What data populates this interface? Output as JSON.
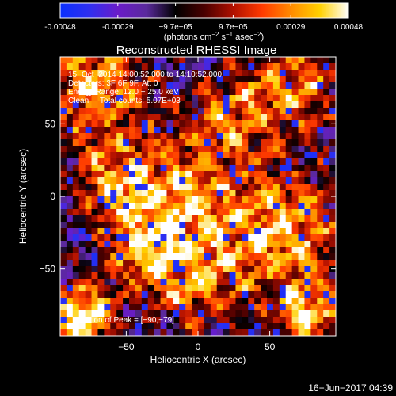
{
  "chart_data": {
    "type": "heatmap",
    "title": "Reconstructed RHESSI Image",
    "colorbar": {
      "ticks": [
        "-0.00048",
        "-0.00029",
        "−9.7e−05",
        "9.7e−05",
        "0.00029",
        "0.00048"
      ],
      "unit_parts": [
        "(photons cm",
        "−2",
        " s",
        "−1",
        " asec",
        "−2",
        ")"
      ],
      "range": [
        -0.00048,
        0.00048
      ],
      "colors": [
        "#0a2fff",
        "#2f2ff0",
        "#6a1cc9",
        "#5a2a9c",
        "#000000",
        "#4a0000",
        "#b01000",
        "#ff3a00",
        "#ff8a00",
        "#ffd000",
        "#ffffff"
      ]
    },
    "annotations": [
      "15−Oct−2014 14:00:52.000 to 14:10:52.000",
      "Detectors: 3F 6F 9F, Att 0",
      "Energy Range: 12.0 − 25.0 keV",
      "Clean     Total counts: 5.07E+03"
    ],
    "peak_label": "Position of Peak = [−90,−79]",
    "peak": [
      -90,
      -79
    ],
    "xlabel": "Heliocentric X (arcsec)",
    "ylabel": "Heliocentric Y (arcsec)",
    "xlim": [
      -96,
      96
    ],
    "ylim": [
      -96,
      96
    ],
    "xticks": [
      {
        "value": -50,
        "label": "−50"
      },
      {
        "value": 0,
        "label": "0"
      },
      {
        "value": 50,
        "label": "50"
      }
    ],
    "yticks": [
      {
        "value": 50,
        "label": "50"
      },
      {
        "value": 0,
        "label": "0"
      },
      {
        "value": -50,
        "label": "−50"
      }
    ],
    "grid": false
  },
  "footer": {
    "date": "16−Jun−2017 04:39"
  }
}
